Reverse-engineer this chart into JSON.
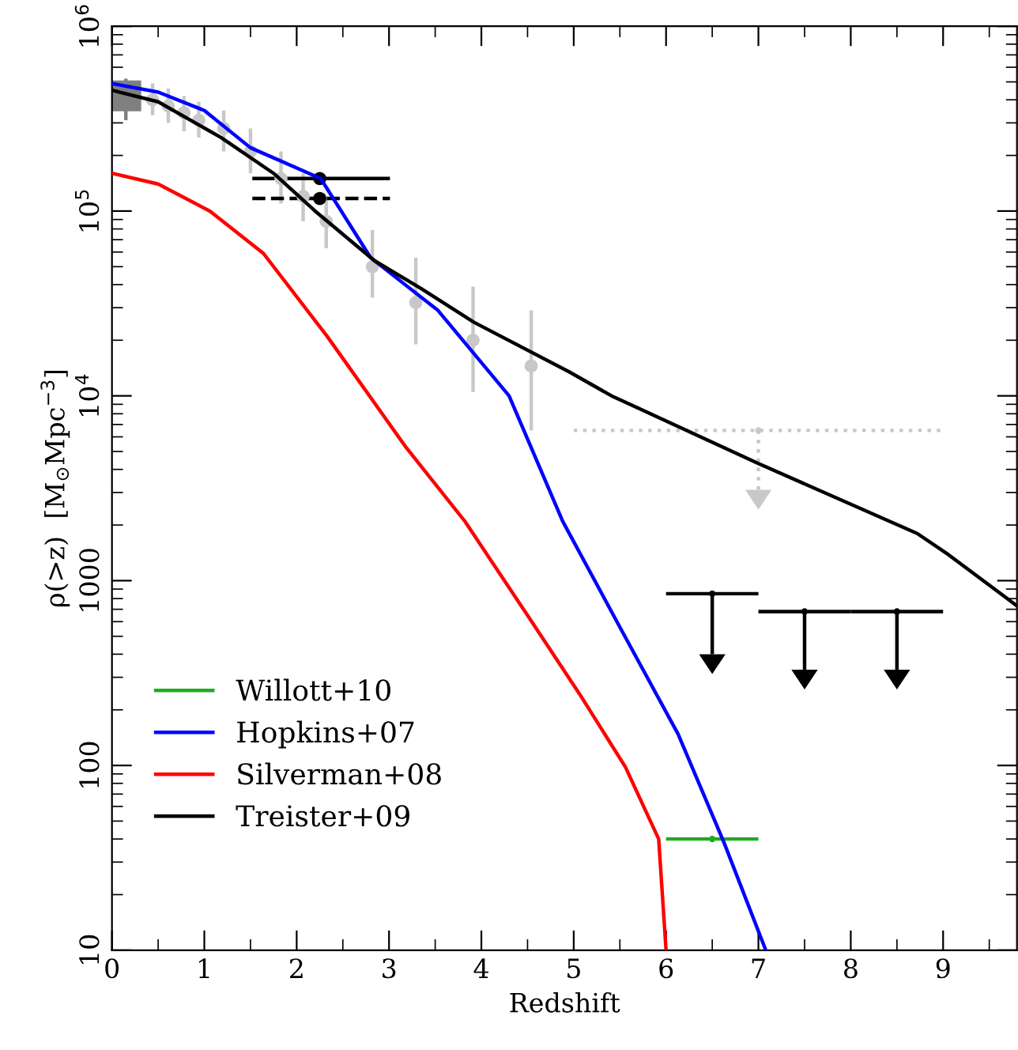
{
  "chart_data": {
    "type": "line",
    "xlabel": "Redshift",
    "ylabel": "ρ(>z)  [M$_{⊙}$Mpc$^{−3}$]",
    "log": "y",
    "xlim": [
      0,
      9.8
    ],
    "ylim": [
      10,
      1000000
    ],
    "xticks": [
      0,
      1,
      2,
      3,
      4,
      5,
      6,
      7,
      8,
      9
    ],
    "yticks": [
      {
        "value": 10,
        "label": "10"
      },
      {
        "value": 100,
        "label": "100"
      },
      {
        "value": 1000,
        "label": "1000"
      },
      {
        "value": 10000,
        "label": "10$^{4}$"
      },
      {
        "value": 100000,
        "label": "10$^{5}$"
      },
      {
        "value": 1000000,
        "label": "10$^{6}$"
      }
    ],
    "grid": false,
    "legend": "bottom left",
    "series": [
      {
        "type": "scatter",
        "marker": "circle",
        "color": "#c8c8c8",
        "x": [
          0.44,
          0.61,
          0.78,
          0.94,
          1.21,
          1.5,
          1.83,
          2.07,
          2.32,
          2.82,
          3.29,
          3.91,
          4.54
        ],
        "values": [
          400000,
          370000,
          340000,
          310000,
          280000,
          210000,
          150000,
          120000,
          88000,
          50000,
          32000,
          20000,
          14500
        ],
        "errors": [
          [
            330000,
            490000
          ],
          [
            300000,
            460000
          ],
          [
            270000,
            420000
          ],
          [
            250000,
            390000
          ],
          [
            210000,
            350000
          ],
          [
            160000,
            280000
          ],
          [
            110000,
            210000
          ],
          [
            88000,
            160000
          ],
          [
            63000,
            120000
          ],
          [
            34000,
            79000
          ],
          [
            19000,
            56000
          ],
          [
            10500,
            39000
          ],
          [
            6500,
            29000
          ]
        ]
      },
      {
        "type": "scatter",
        "marker": "square",
        "color": "#808080",
        "x": [
          0.15
        ],
        "values": [
          420000
        ],
        "errors": [
          [
            310000,
            520000
          ]
        ],
        "xerrors": [
          0.15
        ]
      },
      {
        "type": "scatter",
        "line_style": "dotted",
        "color": "#c8c8c8",
        "x": [
          7.0
        ],
        "values": [
          6500
        ],
        "xerrors": [
          2.0
        ],
        "errors": [
          [
            3100,
            6500
          ]
        ]
      },
      {
        "type": "scatter",
        "color": "#000000",
        "x": [
          6.5,
          7.5,
          8.5
        ],
        "values": [
          850,
          680,
          680
        ],
        "xerrors": [
          0.5,
          0.5,
          0.5
        ],
        "errors": [
          [
            400,
            850
          ],
          [
            330,
            680
          ],
          [
            330,
            680
          ]
        ]
      },
      {
        "type": "scatter",
        "marker": "circle",
        "color": "#000000",
        "x": [
          2.25
        ],
        "values": [
          150000
        ],
        "xerrors": [
          [
            1.52,
            3.01
          ]
        ]
      },
      {
        "type": "scatter",
        "marker": "circle",
        "line_style": "dashed",
        "color": "#000000",
        "x": [
          2.25
        ],
        "values": [
          117000
        ],
        "xerrors": [
          [
            1.52,
            3.01
          ]
        ]
      },
      {
        "type": "scatter",
        "name": "Willott+10",
        "color": "#22aa22",
        "x": [
          6.5
        ],
        "values": [
          40
        ],
        "xerrors": [
          0.5
        ]
      },
      {
        "type": "line",
        "name": "Hopkins+07",
        "color": "#0000ff",
        "x": [
          0,
          0.5,
          1,
          1.5,
          2.26,
          2.8,
          3.53,
          4.3,
          4.88,
          5.5,
          6.13,
          6.63,
          7.08
        ],
        "values": [
          490000,
          440000,
          350000,
          220000,
          150000,
          56000,
          29000,
          10000,
          2100,
          560,
          148,
          38,
          10
        ]
      },
      {
        "type": "line",
        "name": "Silverman+08",
        "color": "#ff0000",
        "x": [
          0,
          0.5,
          1.06,
          1.64,
          2.33,
          3.18,
          3.82,
          4.49,
          5.06,
          5.56,
          5.92,
          6.0
        ],
        "values": [
          160000,
          140000,
          100000,
          59000,
          21000,
          5300,
          2100,
          660,
          245,
          98,
          40,
          10
        ]
      },
      {
        "type": "line",
        "name": "Treister+09",
        "color": "#000000",
        "x": [
          0,
          0.5,
          1.18,
          1.75,
          2.2,
          2.84,
          3.35,
          3.92,
          4.95,
          5.41,
          7.0,
          8.72,
          9.06,
          9.8
        ],
        "values": [
          450000,
          390000,
          250000,
          160000,
          100000,
          54000,
          38000,
          25000,
          13500,
          10000,
          4300,
          1800,
          1380,
          730
        ]
      }
    ]
  }
}
